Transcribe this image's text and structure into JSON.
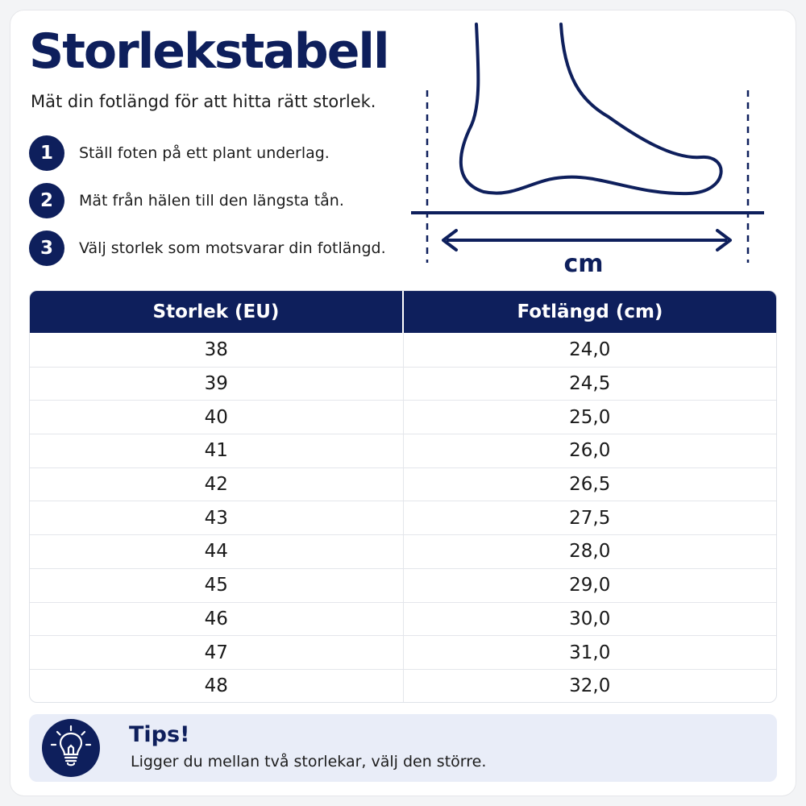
{
  "header": {
    "title": "Storlekstabell",
    "subtitle": "Mät din fotlängd för att hitta rätt storlek."
  },
  "steps": [
    {
      "number": "1",
      "text": "Ställ foten på ett plant underlag."
    },
    {
      "number": "2",
      "text": "Mät från hälen till den längsta tån."
    },
    {
      "number": "3",
      "text": "Välj storlek som motsvarar din fotlängd."
    }
  ],
  "illustration": {
    "unit_label": "cm",
    "icons": [
      "foot-outline",
      "measure-arrow"
    ]
  },
  "table": {
    "headers": [
      "Storlek (EU)",
      "Fotlängd (cm)"
    ],
    "rows": [
      [
        "38",
        "24,0"
      ],
      [
        "39",
        "24,5"
      ],
      [
        "40",
        "25,0"
      ],
      [
        "41",
        "26,0"
      ],
      [
        "42",
        "26,5"
      ],
      [
        "43",
        "27,5"
      ],
      [
        "44",
        "28,0"
      ],
      [
        "45",
        "29,0"
      ],
      [
        "46",
        "30,0"
      ],
      [
        "47",
        "31,0"
      ],
      [
        "48",
        "32,0"
      ]
    ]
  },
  "tips": {
    "icon": "lightbulb-icon",
    "title": "Tips!",
    "text": "Ligger du mellan två storlekar, välj den större."
  },
  "colors": {
    "accent": "#0e1f5c",
    "tips_background": "#e9edf8"
  }
}
